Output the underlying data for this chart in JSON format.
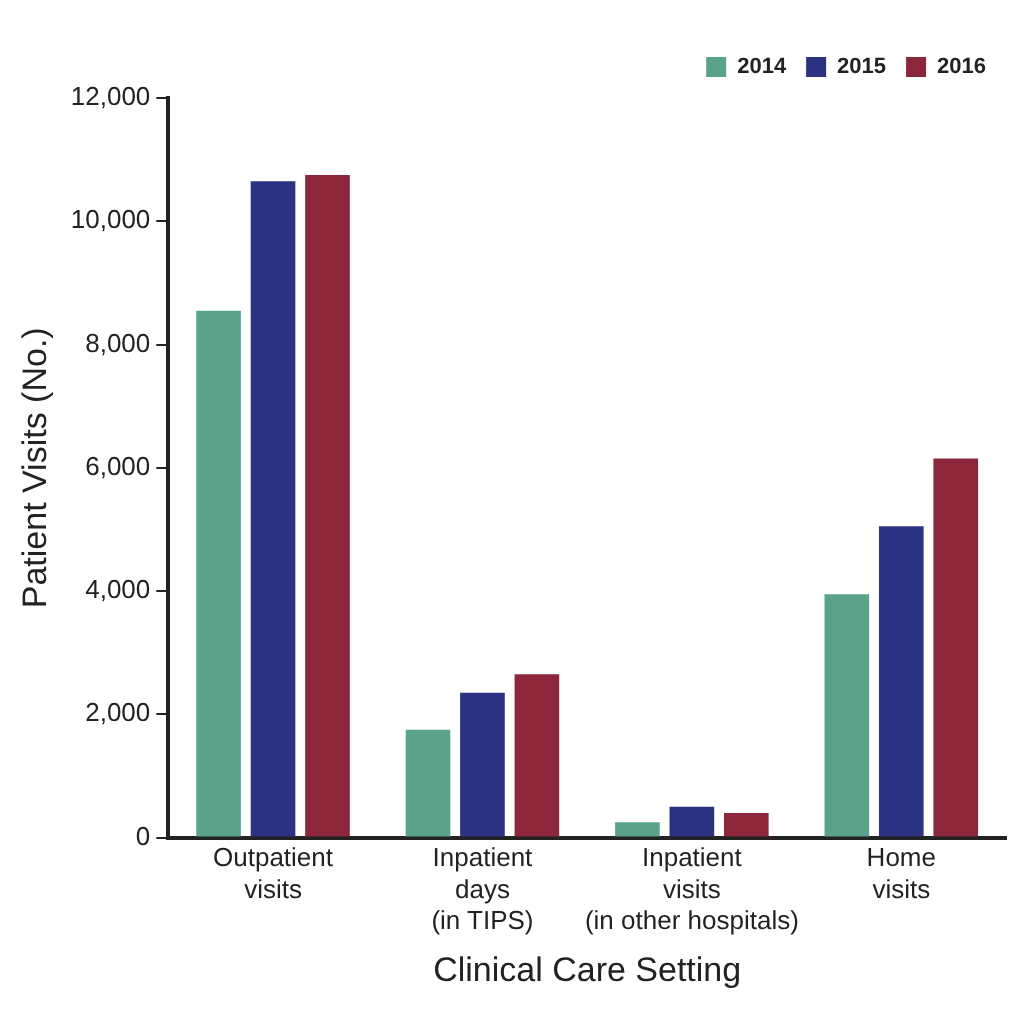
{
  "chart_data": {
    "type": "bar",
    "xlabel": "Clinical Care Setting",
    "ylabel": "Patient Visits (No.)",
    "categories": [
      "Outpatient\nvisits",
      "Inpatient\ndays\n(in TIPS)",
      "Inpatient\nvisits\n(in other hospitals)",
      "Home\nvisits"
    ],
    "series": [
      {
        "name": "2014",
        "color": "#5aa38a",
        "values": [
          8550,
          1750,
          250,
          3950
        ]
      },
      {
        "name": "2015",
        "color": "#2b3281",
        "values": [
          10650,
          2350,
          500,
          5050
        ]
      },
      {
        "name": "2016",
        "color": "#8b263b",
        "values": [
          10750,
          2650,
          400,
          6150
        ]
      }
    ],
    "ylim": [
      0,
      12000
    ],
    "yticks": [
      {
        "value": 0,
        "label": "0"
      },
      {
        "value": 2000,
        "label": "2,000"
      },
      {
        "value": 4000,
        "label": "4,000"
      },
      {
        "value": 6000,
        "label": "6,000"
      },
      {
        "value": 8000,
        "label": "8,000"
      },
      {
        "value": 10000,
        "label": "10,000"
      },
      {
        "value": 12000,
        "label": "12,000"
      }
    ],
    "grid": false,
    "legend": "top right"
  }
}
